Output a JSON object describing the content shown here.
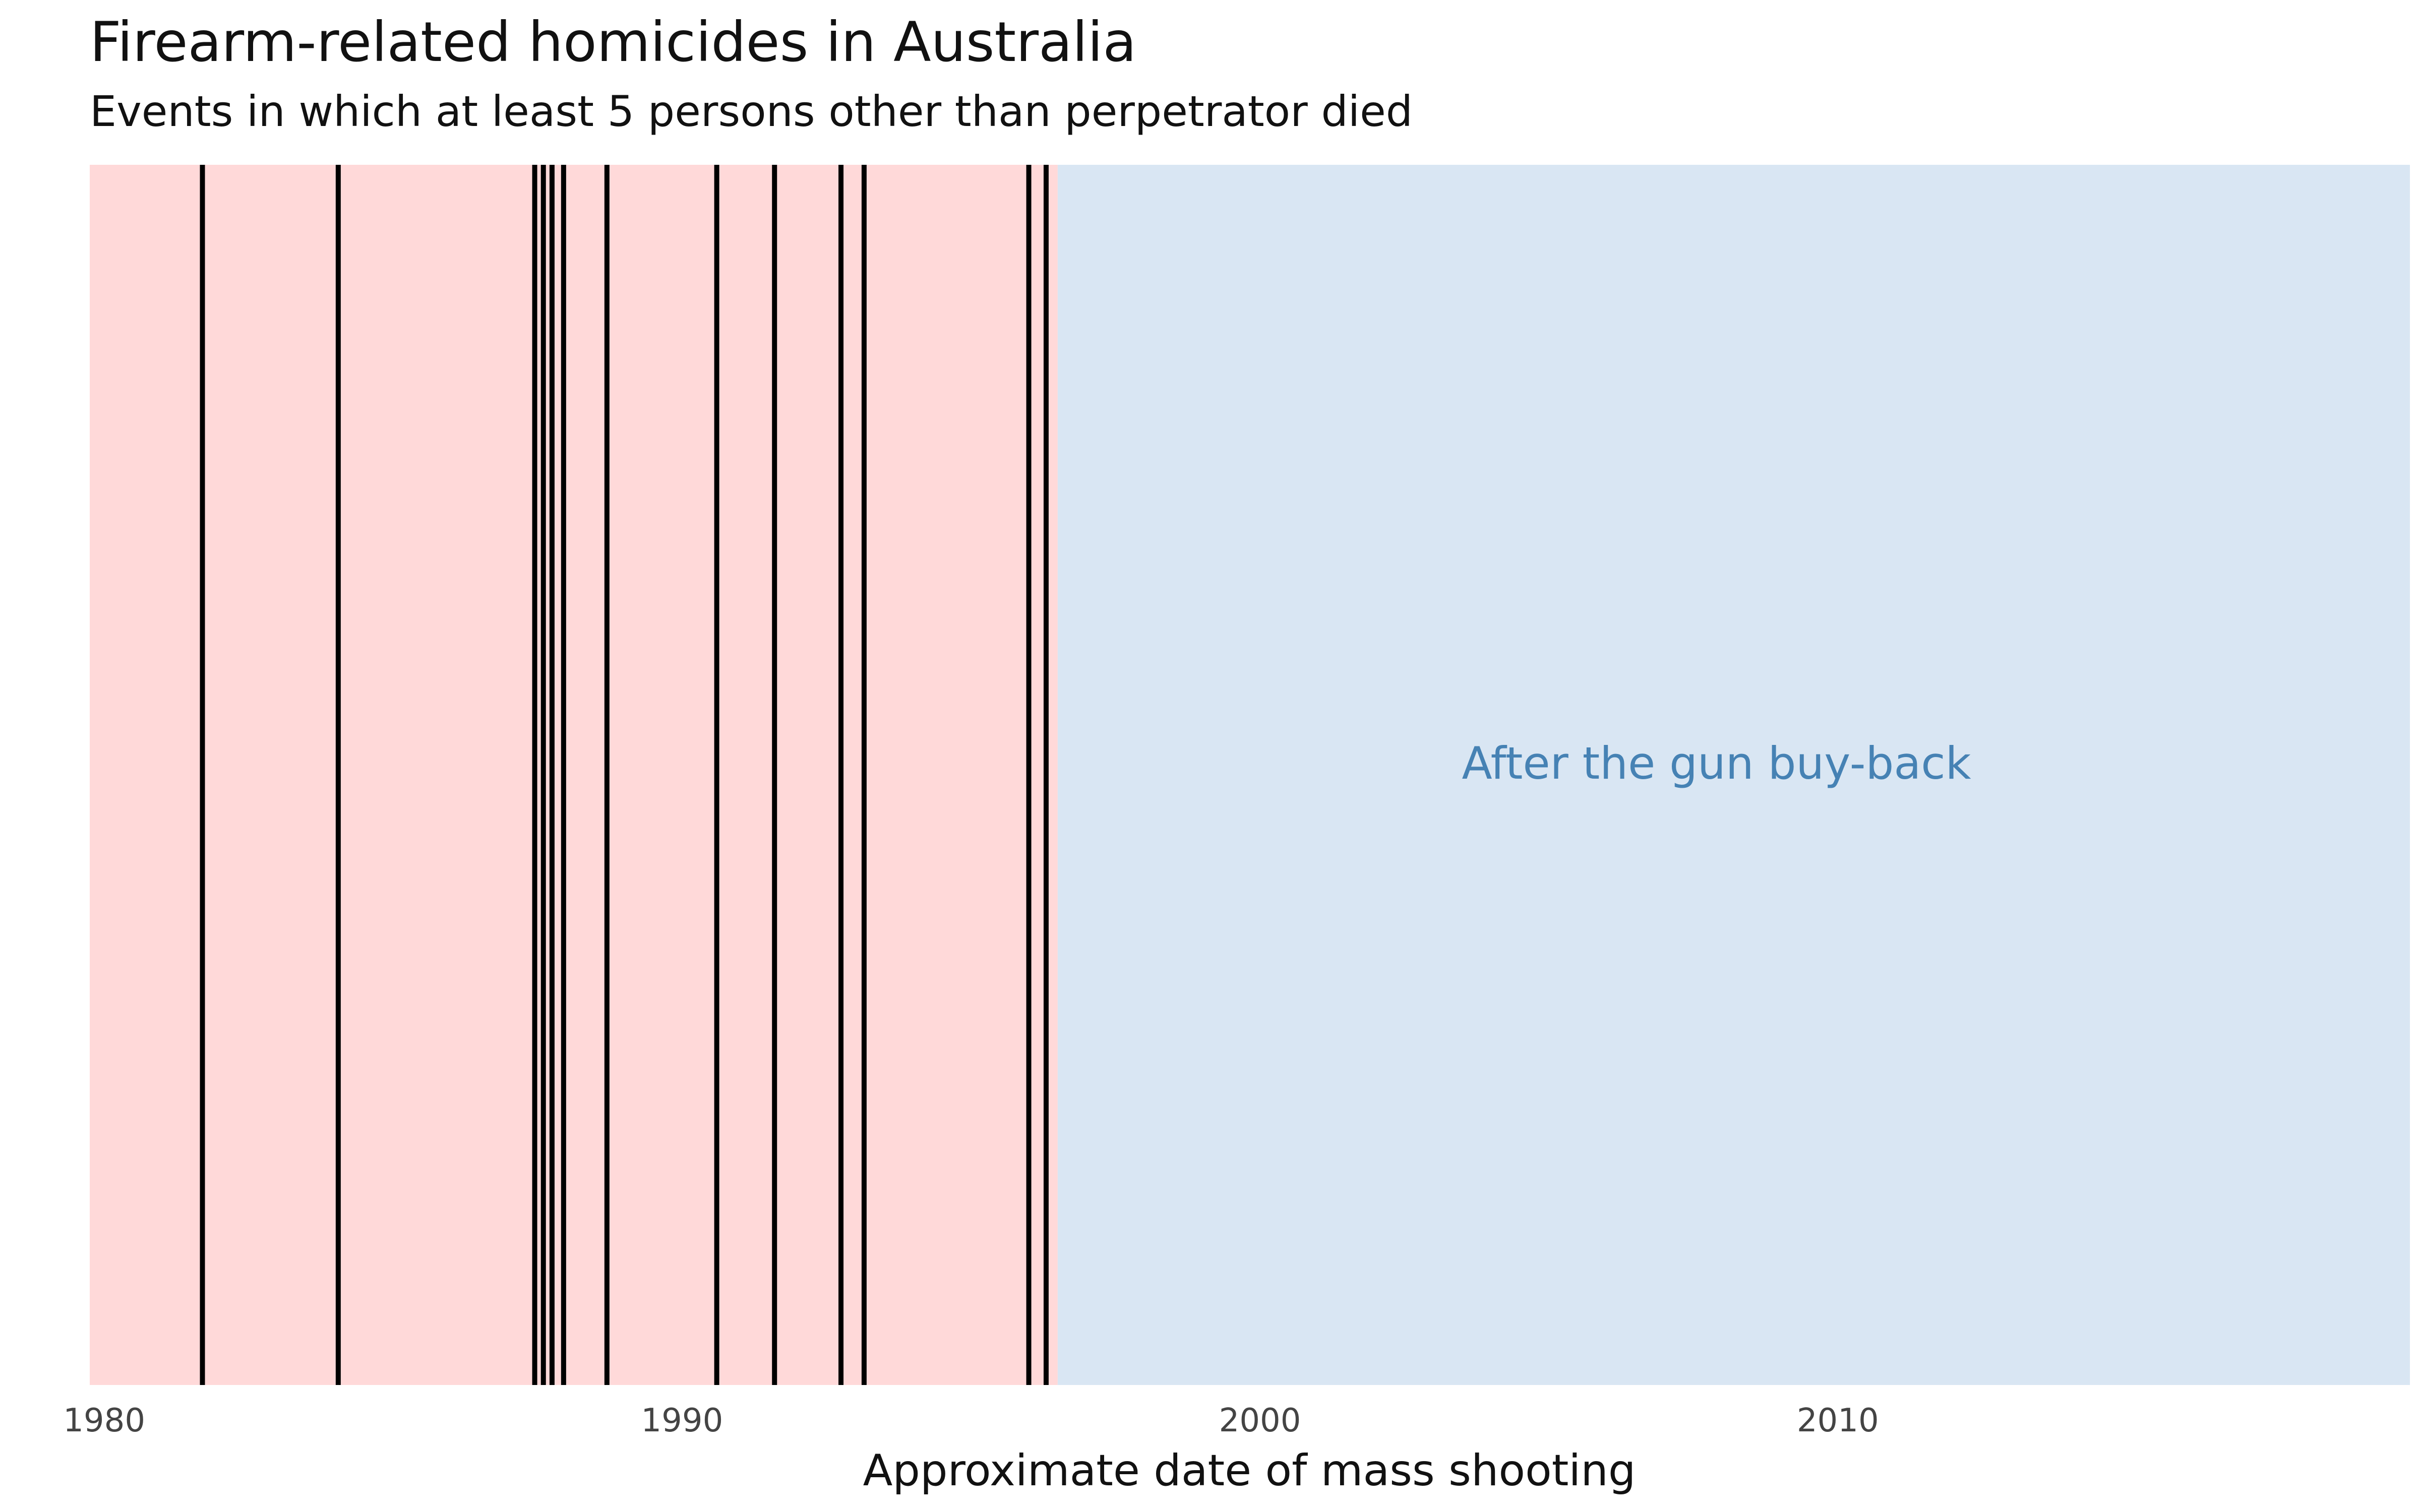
{
  "title": "Firearm-related homicides in Australia",
  "subtitle": "Events in which at least 5 persons other than perpetrator died",
  "chart_data": {
    "type": "event-timeline",
    "title": "Firearm-related homicides in Australia",
    "subtitle": "Events in which at least 5 persons other than perpetrator died",
    "xlabel": "Approximate date of mass shooting",
    "ylabel": "",
    "xlim": [
      1979.75,
      2019.9
    ],
    "x_ticks": [
      1980,
      1990,
      2000,
      2010
    ],
    "x_tick_labels": [
      "1980",
      "1990",
      "2000",
      "2010"
    ],
    "grid": false,
    "legend": "none",
    "regions": [
      {
        "name": "before",
        "from": 1979.75,
        "to": 1996.5,
        "color": "#ffd9d9",
        "label": ""
      },
      {
        "name": "after",
        "from": 1996.5,
        "to": 2019.9,
        "color": "#d9e6f3",
        "label": "After the gun buy-back"
      }
    ],
    "events": [
      1981.7,
      1984.05,
      1987.45,
      1987.6,
      1987.75,
      1987.95,
      1988.7,
      1990.6,
      1991.6,
      1992.75,
      1993.15,
      1996.0,
      1996.3
    ],
    "event_color": "#000000",
    "annotation": {
      "text": "After the gun buy-back",
      "x": 2007.9,
      "color": "#4682b4"
    }
  }
}
